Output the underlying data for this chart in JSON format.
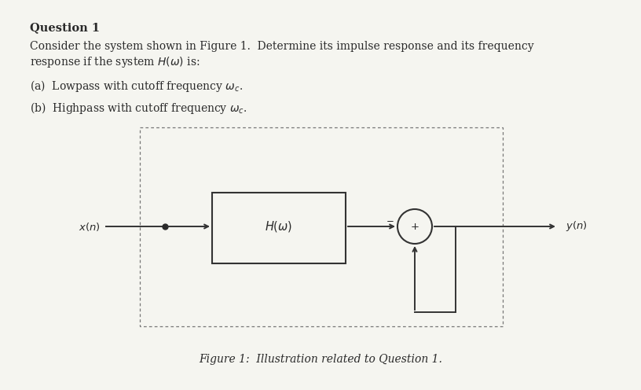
{
  "bg_color": "#f5f5f0",
  "text_color": "#2a2a2a",
  "title": "Question 1",
  "line1": "Consider the system shown in Figure 1.  Determine its impulse response and its frequency",
  "line2": "response if the system $H(\\omega)$ is:",
  "part_a": "(a)  Lowpass with cutoff frequency $\\omega_c$.",
  "part_b": "(b)  Highpass with cutoff frequency $\\omega_c$.",
  "fig_caption": "Figure 1:  Illustration related to Question 1.",
  "box_label": "$H(\\omega)$",
  "input_label": "$x(n)$",
  "output_label": "$y(n)$",
  "minus_label": "$-$",
  "plus_label": "$+$",
  "title_fontsize": 10.5,
  "body_fontsize": 10.0,
  "caption_fontsize": 10.0
}
